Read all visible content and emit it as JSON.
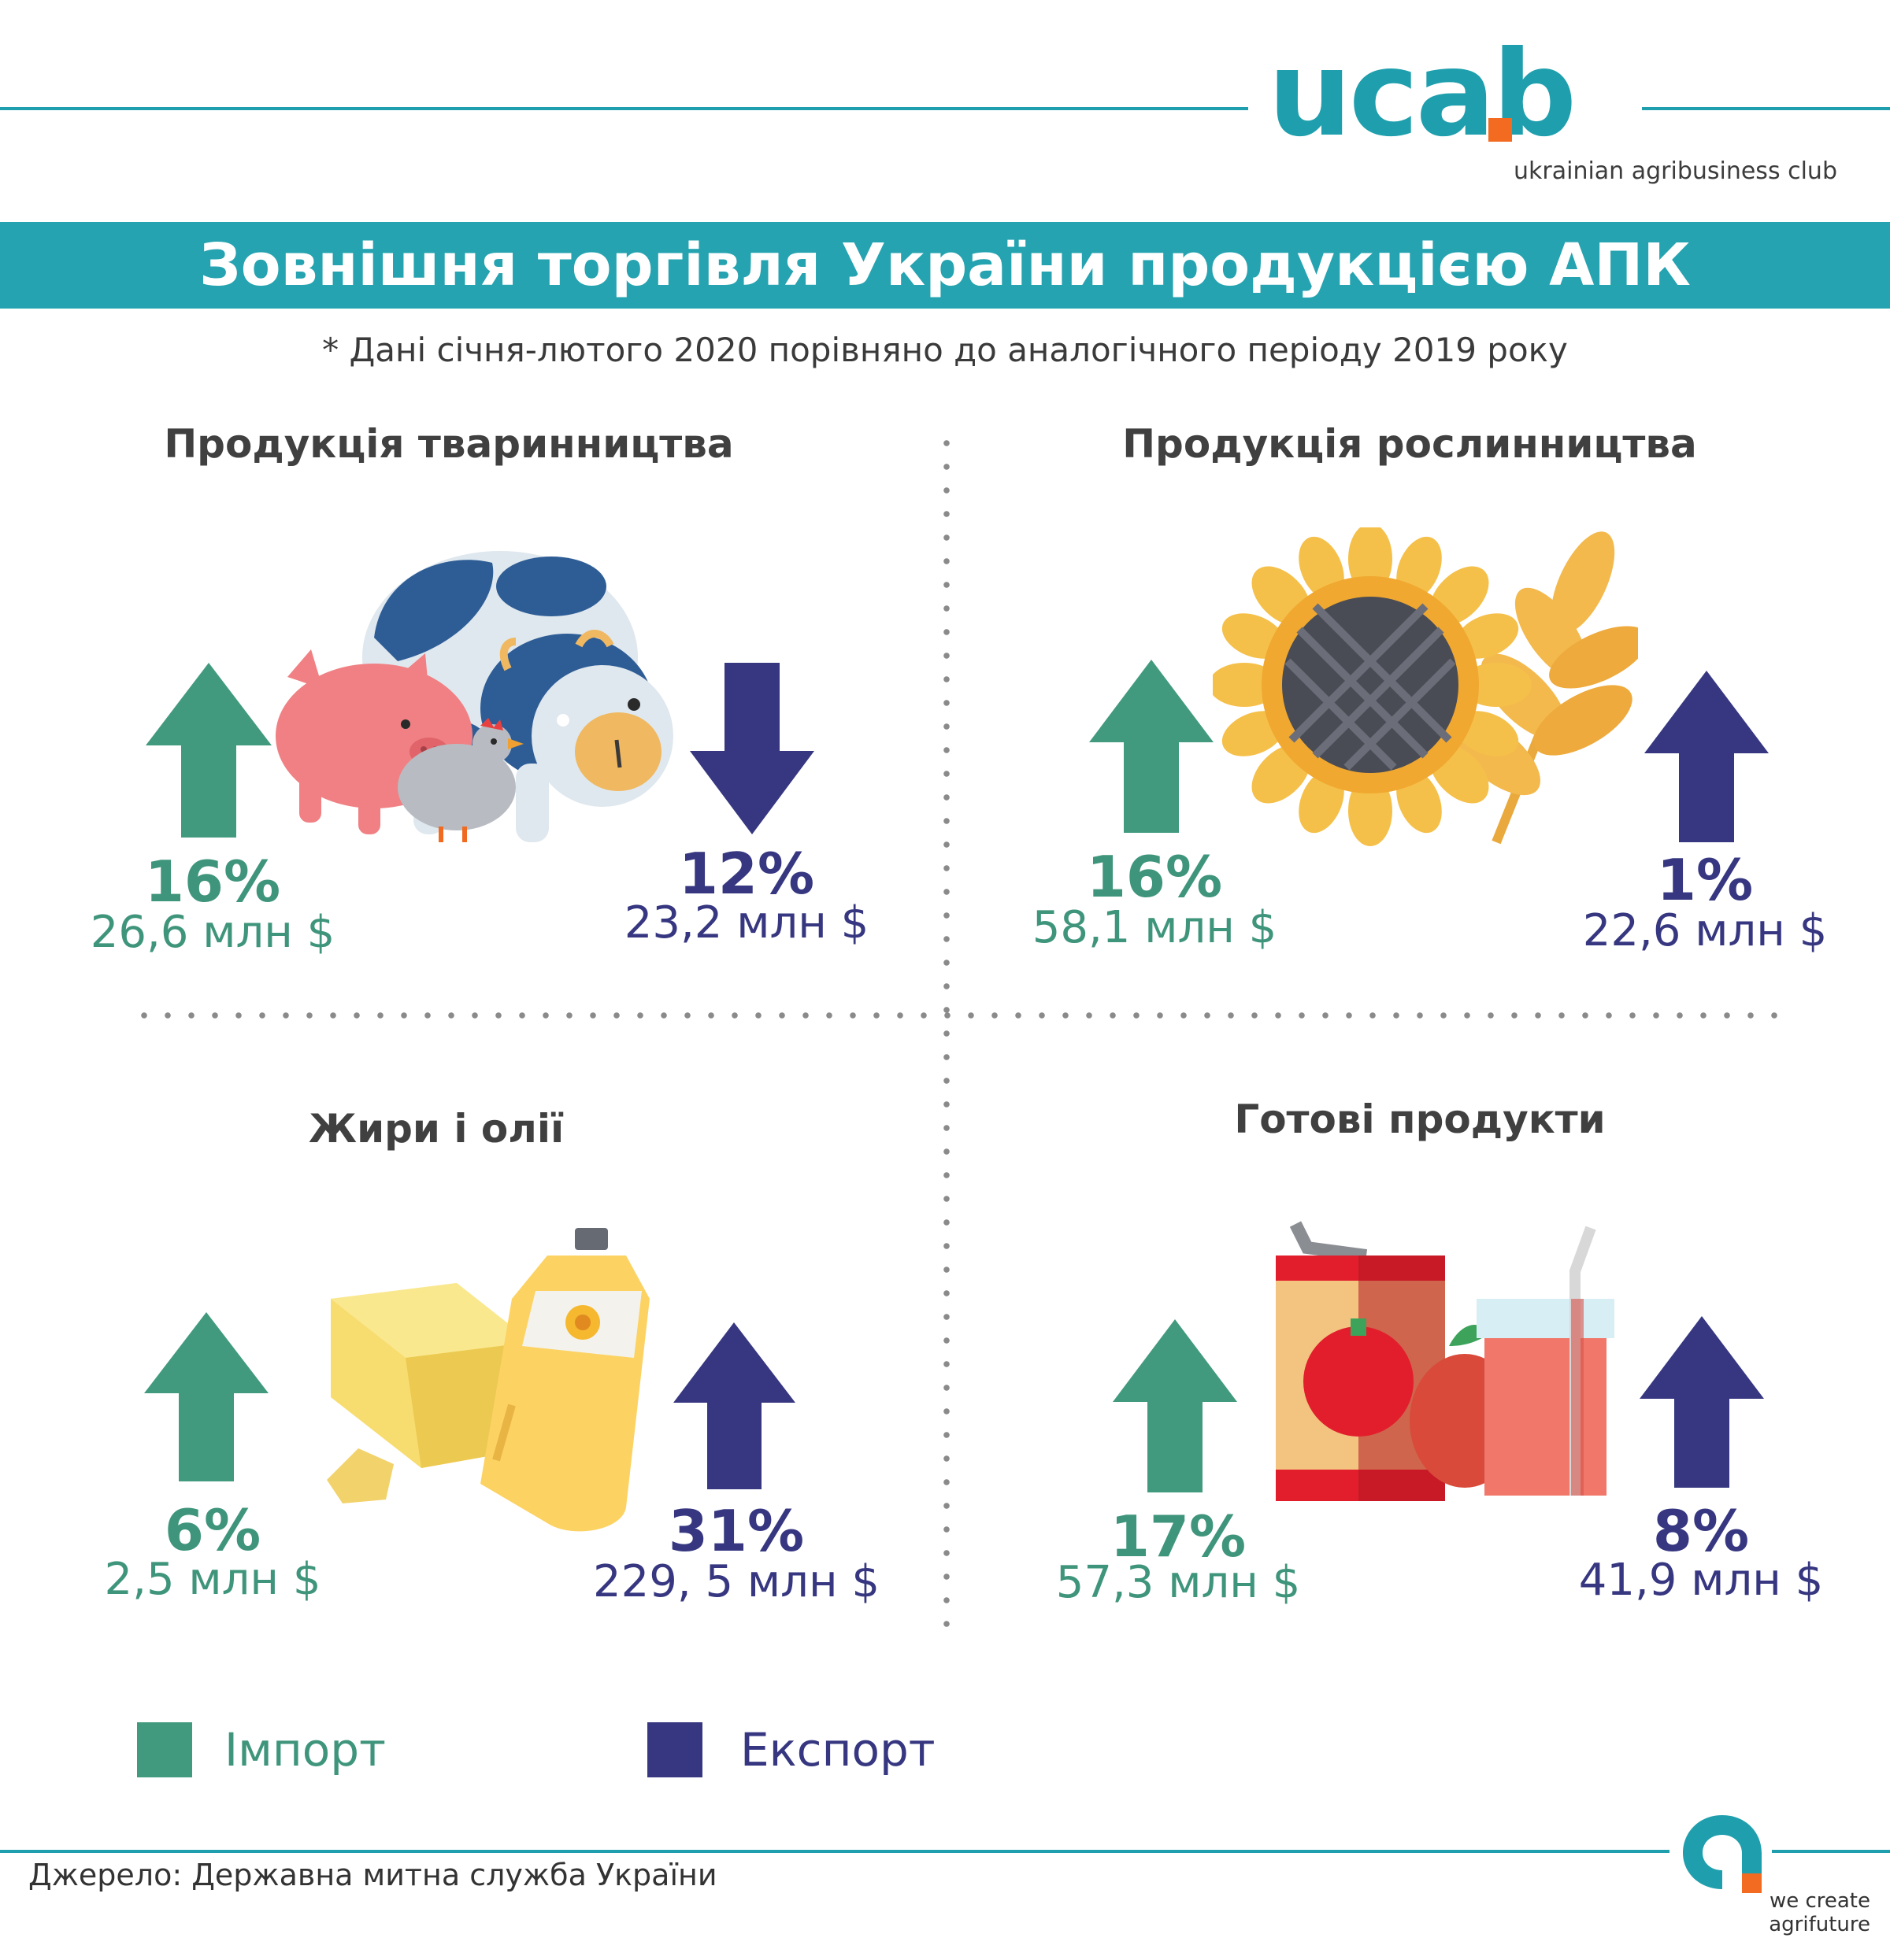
{
  "brand": {
    "logo_text": "ucab",
    "logo_subtitle": "ukrainian agribusiness club",
    "tagline": [
      "we create",
      "agrifuture"
    ],
    "primary_color": "#1f9fad",
    "accent_color": "#f26b21"
  },
  "header": {
    "title": "Зовнішня торгівля України продукцією АПК",
    "note": "* Дані січня-лютого 2020 порівняно до аналогічного періоду 2019 року"
  },
  "chart_data": {
    "type": "table",
    "colors": {
      "import": "#429a7e",
      "export": "#363780"
    },
    "categories": [
      {
        "title": "Продукція тваринництва",
        "icon": "livestock-icon",
        "import": {
          "direction": "up",
          "change": "16%",
          "value": "26,6 млн $"
        },
        "export": {
          "direction": "down",
          "change": "12%",
          "value": "23,2 млн $"
        }
      },
      {
        "title": "Продукція рослинництва",
        "icon": "sunflower-wheat-icon",
        "import": {
          "direction": "up",
          "change": "16%",
          "value": "58,1 млн $"
        },
        "export": {
          "direction": "up",
          "change": "1%",
          "value": "22,6 млн $"
        }
      },
      {
        "title": "Жири і олії",
        "icon": "butter-oil-icon",
        "import": {
          "direction": "up",
          "change": "6%",
          "value": "2,5 млн $"
        },
        "export": {
          "direction": "up",
          "change": "31%",
          "value": "229, 5 млн $"
        }
      },
      {
        "title": "Готові продукти",
        "icon": "canned-juice-icon",
        "import": {
          "direction": "up",
          "change": "17%",
          "value": "57,3 млн $"
        },
        "export": {
          "direction": "up",
          "change": "8%",
          "value": "41,9 млн $"
        }
      }
    ]
  },
  "legend": {
    "import_label": "Імпорт",
    "export_label": "Експорт"
  },
  "footer": {
    "source": "Джерело: Державна митна служба України"
  }
}
